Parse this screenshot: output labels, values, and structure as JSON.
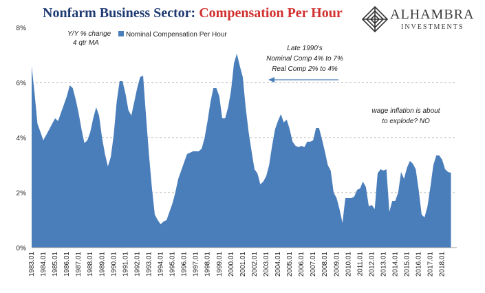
{
  "title": {
    "part1": "Nonfarm Business Sector:",
    "part2": "Compensation Per Hour"
  },
  "logo": {
    "name": "ALHAMBRA",
    "sub": "INVESTMENTS"
  },
  "colors": {
    "area": "#4a7ebb",
    "title_blue": "#1f3b73",
    "title_red": "#d1302f",
    "arrow": "#4a7ebb",
    "grid": "#b0b0b0"
  },
  "chart_data": {
    "type": "area",
    "series": [
      {
        "name": "Nominal Compensation Per Hour"
      }
    ],
    "subtitle_lines": [
      "Y/Y % change",
      "4 qtr MA"
    ],
    "ylim": [
      0,
      8
    ],
    "yticks": [
      "0%",
      "2%",
      "4%",
      "6%",
      "8%"
    ],
    "grid": true,
    "xlim": [
      1983.0,
      2019.25
    ],
    "xticks": [
      "1983.01",
      "1984.01",
      "1985.01",
      "1986.01",
      "1987.01",
      "1988.01",
      "1989.01",
      "1990.01",
      "1991.01",
      "1992.01",
      "1993.01",
      "1994.01",
      "1995.01",
      "1996.01",
      "1997.01",
      "1998.01",
      "1999.01",
      "2000.01",
      "2001.01",
      "2002.01",
      "2003.01",
      "2004.01",
      "2005.01",
      "2006.01",
      "2007.01",
      "2008.01",
      "2009.01",
      "2010.01",
      "2011.01",
      "2012.01",
      "2013.01",
      "2014.01",
      "2015.01",
      "2016.01",
      "2017.01",
      "2018.01"
    ],
    "points": [
      [
        1983.0,
        6.6
      ],
      [
        1983.25,
        5.6
      ],
      [
        1983.5,
        4.5
      ],
      [
        1983.75,
        4.2
      ],
      [
        1984.0,
        3.9
      ],
      [
        1984.25,
        4.1
      ],
      [
        1984.5,
        4.3
      ],
      [
        1984.75,
        4.5
      ],
      [
        1985.0,
        4.7
      ],
      [
        1985.25,
        4.6
      ],
      [
        1985.5,
        4.9
      ],
      [
        1985.75,
        5.2
      ],
      [
        1986.0,
        5.5
      ],
      [
        1986.25,
        5.9
      ],
      [
        1986.5,
        5.8
      ],
      [
        1986.75,
        5.4
      ],
      [
        1987.0,
        4.9
      ],
      [
        1987.25,
        4.3
      ],
      [
        1987.5,
        3.8
      ],
      [
        1987.75,
        3.9
      ],
      [
        1988.0,
        4.2
      ],
      [
        1988.25,
        4.7
      ],
      [
        1988.5,
        5.1
      ],
      [
        1988.75,
        4.8
      ],
      [
        1989.0,
        4.0
      ],
      [
        1989.25,
        3.4
      ],
      [
        1989.5,
        2.95
      ],
      [
        1989.75,
        3.3
      ],
      [
        1990.0,
        4.1
      ],
      [
        1990.25,
        5.3
      ],
      [
        1990.5,
        6.05
      ],
      [
        1990.75,
        6.05
      ],
      [
        1991.0,
        5.6
      ],
      [
        1991.25,
        5.0
      ],
      [
        1991.5,
        4.8
      ],
      [
        1991.75,
        5.3
      ],
      [
        1992.0,
        5.8
      ],
      [
        1992.25,
        6.2
      ],
      [
        1992.5,
        6.25
      ],
      [
        1992.75,
        4.8
      ],
      [
        1993.0,
        3.4
      ],
      [
        1993.25,
        2.2
      ],
      [
        1993.5,
        1.2
      ],
      [
        1993.75,
        1.0
      ],
      [
        1994.0,
        0.85
      ],
      [
        1994.25,
        0.95
      ],
      [
        1994.5,
        1.0
      ],
      [
        1994.75,
        1.3
      ],
      [
        1995.0,
        1.6
      ],
      [
        1995.25,
        2.0
      ],
      [
        1995.5,
        2.5
      ],
      [
        1995.75,
        2.8
      ],
      [
        1996.0,
        3.1
      ],
      [
        1996.25,
        3.4
      ],
      [
        1996.5,
        3.45
      ],
      [
        1996.75,
        3.5
      ],
      [
        1997.0,
        3.5
      ],
      [
        1997.25,
        3.5
      ],
      [
        1997.5,
        3.6
      ],
      [
        1997.75,
        4.0
      ],
      [
        1998.0,
        4.6
      ],
      [
        1998.25,
        5.3
      ],
      [
        1998.5,
        5.8
      ],
      [
        1998.75,
        5.8
      ],
      [
        1999.0,
        5.5
      ],
      [
        1999.25,
        4.7
      ],
      [
        1999.5,
        4.7
      ],
      [
        1999.75,
        5.1
      ],
      [
        2000.0,
        5.7
      ],
      [
        2000.25,
        6.7
      ],
      [
        2000.5,
        7.05
      ],
      [
        2000.75,
        6.6
      ],
      [
        2001.0,
        6.2
      ],
      [
        2001.25,
        5.1
      ],
      [
        2001.5,
        4.2
      ],
      [
        2001.75,
        3.5
      ],
      [
        2002.0,
        2.85
      ],
      [
        2002.25,
        2.7
      ],
      [
        2002.5,
        2.3
      ],
      [
        2002.75,
        2.4
      ],
      [
        2003.0,
        2.6
      ],
      [
        2003.25,
        3.0
      ],
      [
        2003.5,
        3.7
      ],
      [
        2003.75,
        4.3
      ],
      [
        2004.0,
        4.6
      ],
      [
        2004.25,
        4.85
      ],
      [
        2004.5,
        4.55
      ],
      [
        2004.75,
        4.65
      ],
      [
        2005.0,
        4.3
      ],
      [
        2005.25,
        3.85
      ],
      [
        2005.5,
        3.7
      ],
      [
        2005.75,
        3.65
      ],
      [
        2006.0,
        3.7
      ],
      [
        2006.25,
        3.65
      ],
      [
        2006.5,
        3.85
      ],
      [
        2006.75,
        3.85
      ],
      [
        2007.0,
        3.9
      ],
      [
        2007.25,
        4.35
      ],
      [
        2007.5,
        4.35
      ],
      [
        2007.75,
        3.95
      ],
      [
        2008.0,
        3.5
      ],
      [
        2008.25,
        3.0
      ],
      [
        2008.5,
        2.8
      ],
      [
        2008.75,
        2.0
      ],
      [
        2009.0,
        1.8
      ],
      [
        2009.25,
        1.4
      ],
      [
        2009.5,
        0.9
      ],
      [
        2009.75,
        1.8
      ],
      [
        2010.0,
        1.8
      ],
      [
        2010.25,
        1.8
      ],
      [
        2010.5,
        1.85
      ],
      [
        2010.75,
        2.1
      ],
      [
        2011.0,
        2.15
      ],
      [
        2011.25,
        2.4
      ],
      [
        2011.5,
        2.2
      ],
      [
        2011.75,
        1.5
      ],
      [
        2012.0,
        1.55
      ],
      [
        2012.25,
        1.4
      ],
      [
        2012.5,
        2.7
      ],
      [
        2012.75,
        2.85
      ],
      [
        2013.0,
        2.8
      ],
      [
        2013.25,
        2.85
      ],
      [
        2013.5,
        1.3
      ],
      [
        2013.75,
        1.7
      ],
      [
        2014.0,
        1.7
      ],
      [
        2014.25,
        2.0
      ],
      [
        2014.5,
        2.75
      ],
      [
        2014.75,
        2.5
      ],
      [
        2015.0,
        2.9
      ],
      [
        2015.25,
        3.15
      ],
      [
        2015.5,
        3.05
      ],
      [
        2015.75,
        2.85
      ],
      [
        2016.0,
        2.1
      ],
      [
        2016.25,
        1.2
      ],
      [
        2016.5,
        1.1
      ],
      [
        2016.75,
        1.5
      ],
      [
        2017.0,
        2.2
      ],
      [
        2017.25,
        3.0
      ],
      [
        2017.5,
        3.35
      ],
      [
        2017.75,
        3.35
      ],
      [
        2018.0,
        3.2
      ],
      [
        2018.25,
        2.85
      ],
      [
        2018.5,
        2.75
      ],
      [
        2018.75,
        2.72
      ]
    ],
    "annotations": [
      {
        "lines": [
          "Late 1990's",
          "Nominal Comp 4% to 7%",
          "Real Comp 2% to 4%"
        ]
      },
      {
        "lines": [
          "wage inflation is about",
          "to explode? NO"
        ]
      }
    ]
  }
}
